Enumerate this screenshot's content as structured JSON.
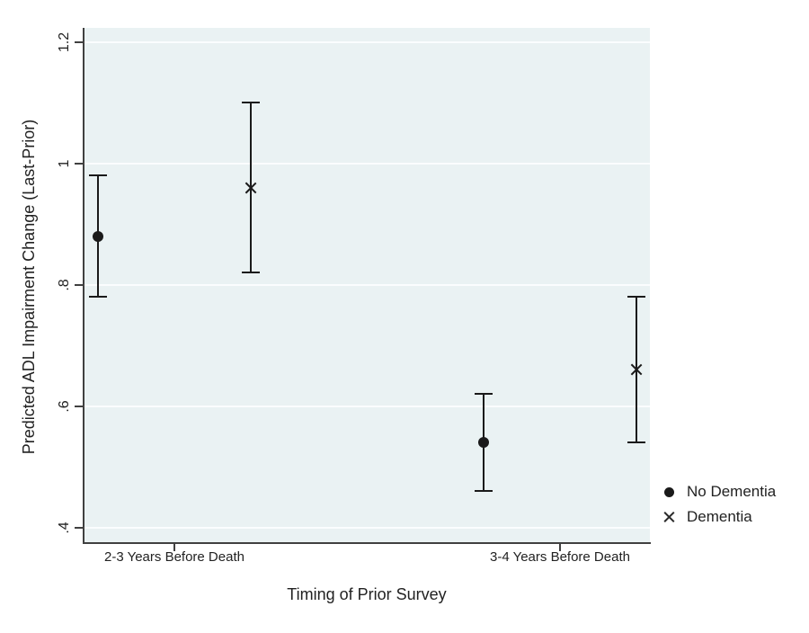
{
  "chart_data": {
    "type": "scatter",
    "subtype": "point-estimates-with-95ci-error-bars",
    "title": "",
    "xlabel": "Timing of Prior Survey",
    "ylabel": "Predicted ADL Impairment Change (Last-Prior)",
    "categories": [
      "2-3 Years Before Death",
      "3-4 Years Before Death"
    ],
    "yticks": [
      0.4,
      0.6,
      0.8,
      1.0,
      1.2
    ],
    "ytick_labels": [
      ".4",
      ".6",
      ".8",
      "1",
      "1.2"
    ],
    "ylim": [
      0.376,
      1.223
    ],
    "grid": true,
    "gridlines": "horizontal-white-on-shaded-plot",
    "legend_position": "right-outside",
    "series": [
      {
        "name": "No Dementia",
        "marker": "circle",
        "points": [
          {
            "category": "2-3 Years Before Death",
            "value": 0.88,
            "ci_low": 0.78,
            "ci_high": 0.98
          },
          {
            "category": "3-4 Years Before Death",
            "value": 0.54,
            "ci_low": 0.46,
            "ci_high": 0.62
          }
        ]
      },
      {
        "name": "Dementia",
        "marker": "x",
        "points": [
          {
            "category": "2-3 Years Before Death",
            "value": 0.96,
            "ci_low": 0.82,
            "ci_high": 1.1
          },
          {
            "category": "3-4 Years Before Death",
            "value": 0.66,
            "ci_low": 0.54,
            "ci_high": 0.78
          }
        ]
      }
    ],
    "colors": {
      "plot_bg": "#eaf2f3",
      "gridline": "#fbfdfe",
      "axis": "#404040",
      "marker": "#1a1a1a",
      "text": "#222222",
      "figure_bg": "#ffffff"
    }
  },
  "legend": {
    "items": [
      {
        "label": "No Dementia",
        "marker": "circle-marker-icon"
      },
      {
        "label": "Dementia",
        "marker": "x-marker-icon"
      }
    ]
  }
}
